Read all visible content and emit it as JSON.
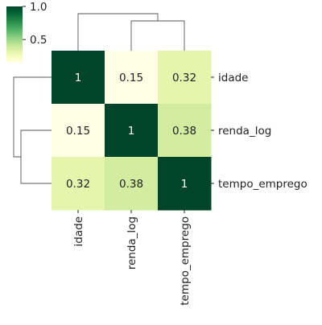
{
  "chart_data": {
    "type": "heatmap",
    "subtype": "clustermap",
    "rows": [
      "idade",
      "renda_log",
      "tempo_emprego"
    ],
    "columns": [
      "idade",
      "renda_log",
      "tempo_emprego"
    ],
    "values": [
      [
        1,
        0.15,
        0.32
      ],
      [
        0.15,
        1,
        0.38
      ],
      [
        0.32,
        0.38,
        1
      ]
    ],
    "cell_labels": [
      [
        "1",
        "0.15",
        "0.32"
      ],
      [
        "0.15",
        "1",
        "0.38"
      ],
      [
        "0.32",
        "0.38",
        "1"
      ]
    ],
    "colormap": "YlGn",
    "colorbar": {
      "range": [
        0.15,
        1.0
      ],
      "ticks": [
        0.5,
        1.0
      ],
      "tick_labels": [
        "0.5",
        "1.0"
      ]
    },
    "dendrogram": {
      "position": [
        "top",
        "left"
      ],
      "first_merge": [
        "renda_log",
        "tempo_emprego"
      ],
      "second_merge": [
        "idade",
        [
          "renda_log",
          "tempo_emprego"
        ]
      ]
    },
    "title": "",
    "xlabel": "",
    "ylabel": ""
  }
}
